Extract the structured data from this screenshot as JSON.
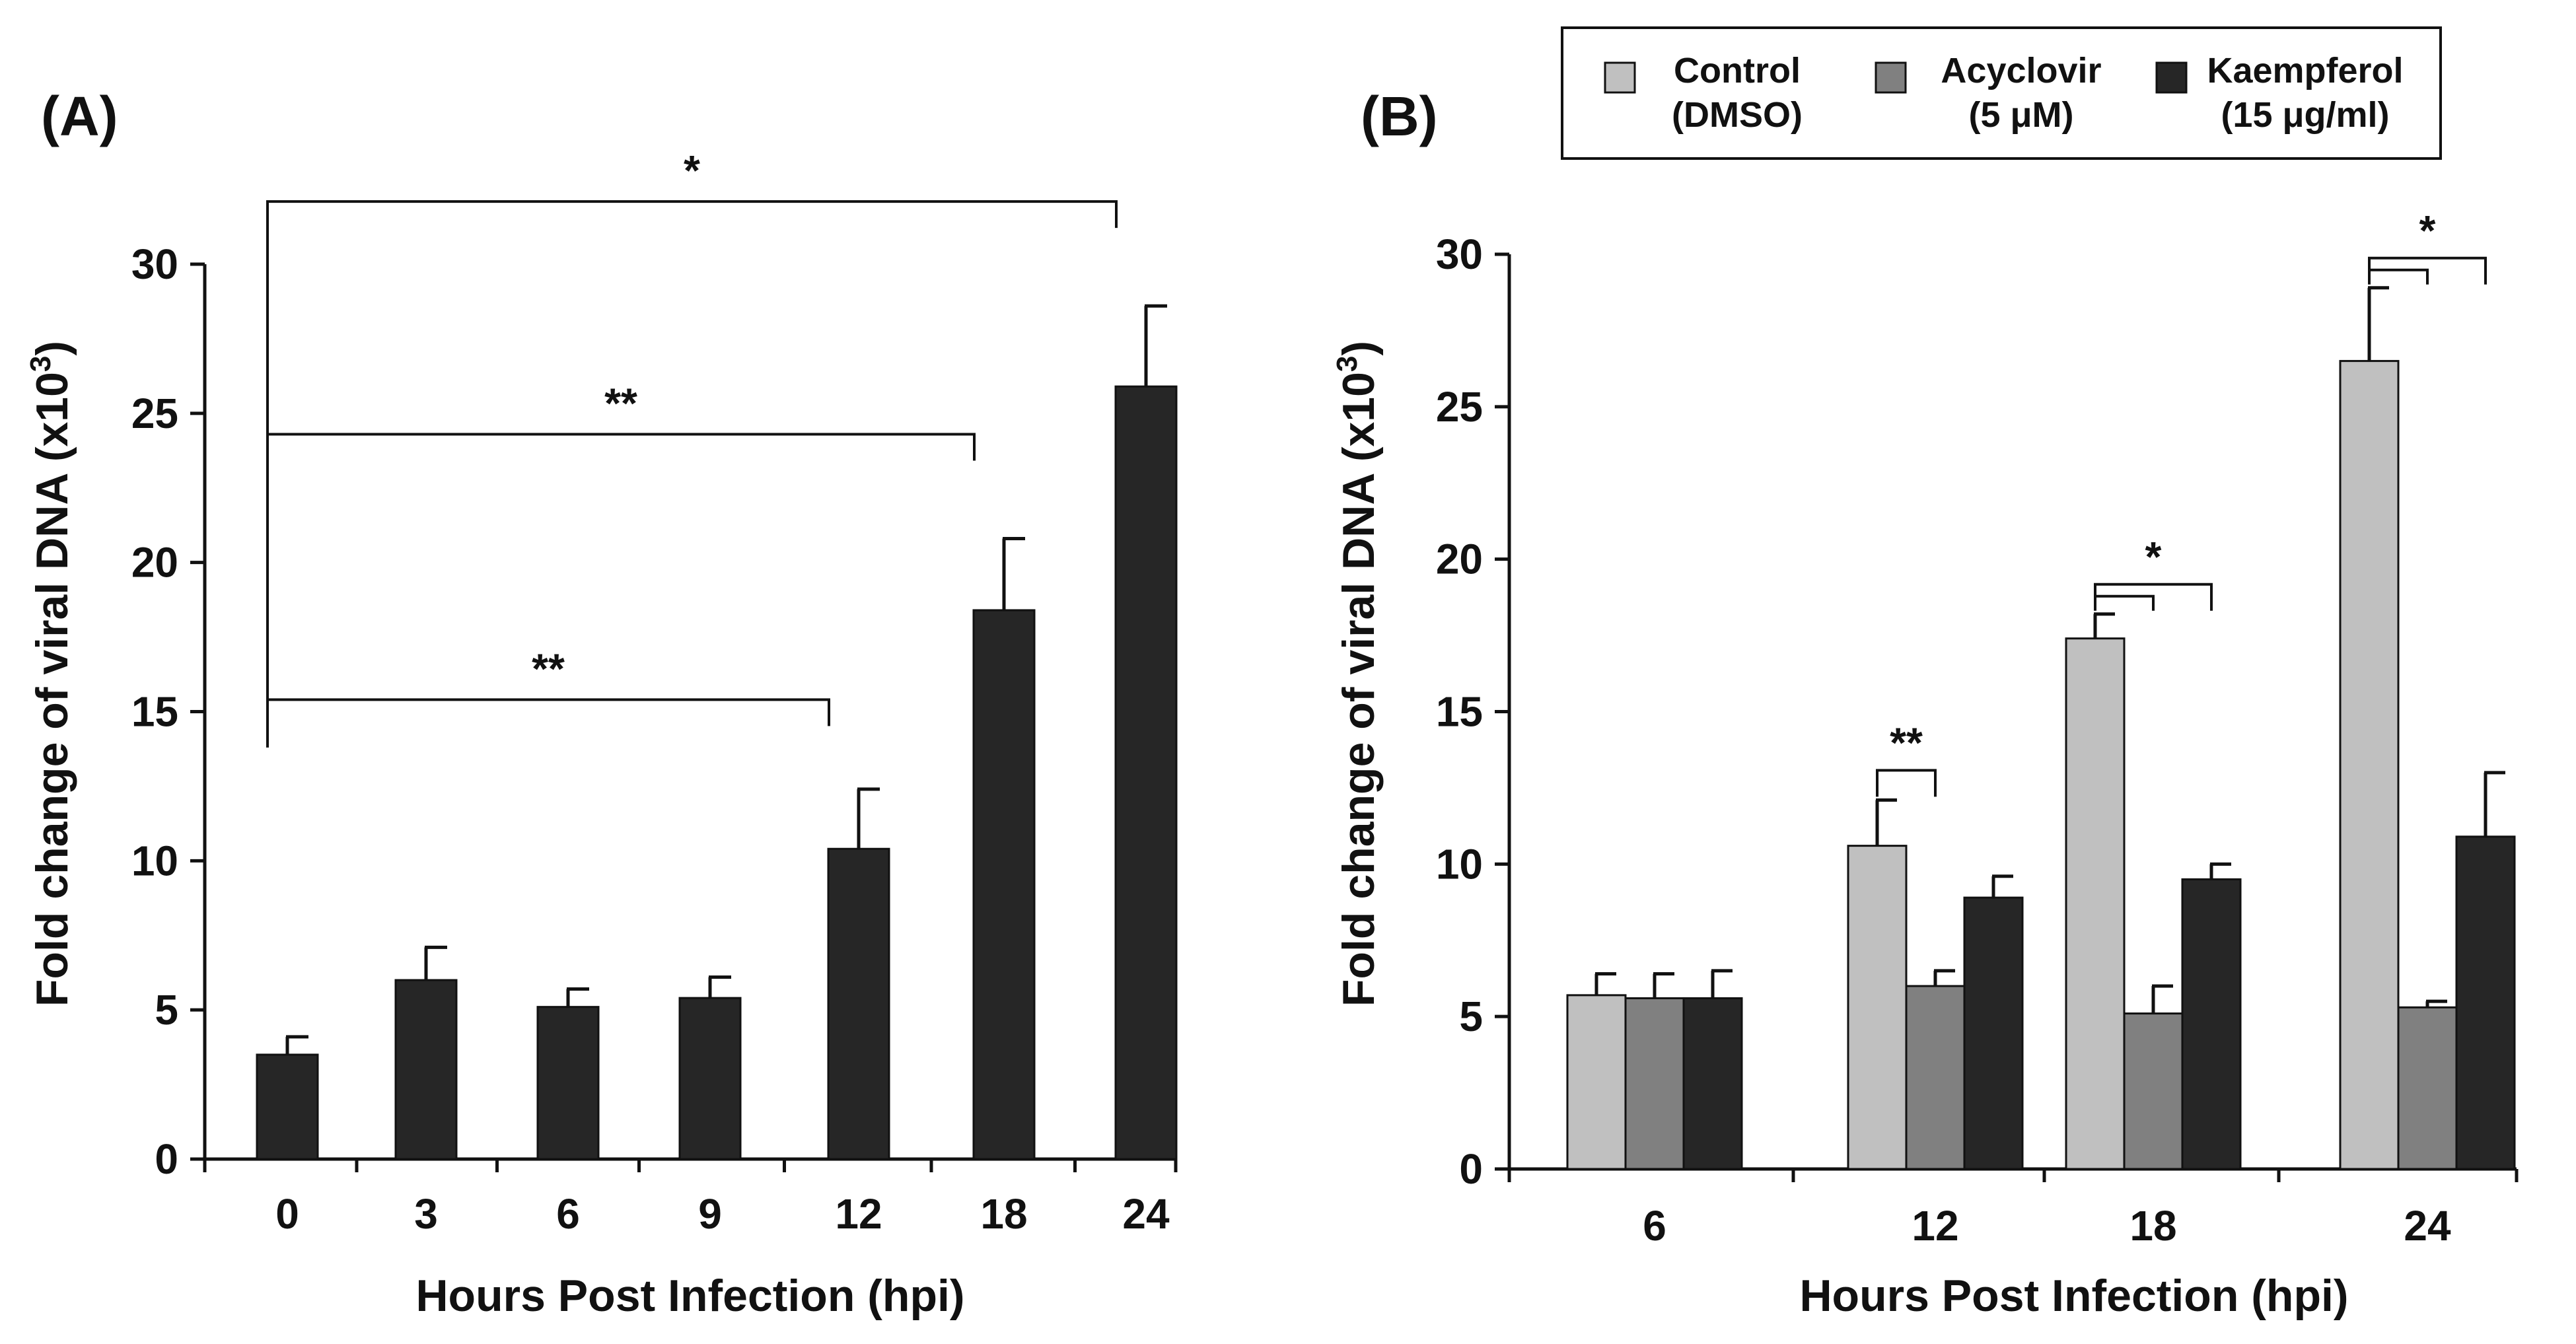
{
  "chart_data": [
    {
      "type": "bar",
      "panel_label": "(A)",
      "categories": [
        "0",
        "3",
        "6",
        "9",
        "12",
        "18",
        "24"
      ],
      "values": [
        3.5,
        6.0,
        5.1,
        5.4,
        10.4,
        18.4,
        25.9
      ],
      "errors": [
        0.6,
        1.1,
        0.6,
        0.7,
        2.0,
        2.4,
        2.7
      ],
      "xlabel": "Hours Post Infection (hpi)",
      "ylabel": "Fold change of viral DNA (x10",
      "ylabel_sup": "3",
      "ylabel_close": ")",
      "ylim": [
        0,
        30
      ],
      "yticks": [
        0,
        5,
        10,
        15,
        20,
        25,
        30
      ],
      "bar_color": "#262626",
      "grid": false,
      "significance": [
        {
          "from": "0",
          "to": "24",
          "label": "*"
        },
        {
          "from": "0",
          "to": "18",
          "label": "**"
        },
        {
          "from": "0",
          "to": "12",
          "label": "**"
        }
      ]
    },
    {
      "type": "bar",
      "panel_label": "(B)",
      "categories": [
        "6",
        "12",
        "18",
        "24"
      ],
      "series": [
        {
          "name_line1": "Control",
          "name_line2": "(DMSO)",
          "color": "#c0c0c0",
          "values": [
            5.7,
            10.6,
            17.4,
            26.5
          ],
          "errors": [
            0.7,
            1.5,
            0.8,
            2.4
          ]
        },
        {
          "name_line1": "Acyclovir",
          "name_line2": "(5 μM)",
          "color": "#808080",
          "values": [
            5.6,
            6.0,
            5.1,
            5.3
          ],
          "errors": [
            0.8,
            0.5,
            0.9,
            0.2
          ]
        },
        {
          "name_line1": "Kaempferol",
          "name_line2": "(15 μg/ml)",
          "color": "#262626",
          "values": [
            5.6,
            8.9,
            9.5,
            10.9
          ],
          "errors": [
            0.9,
            0.7,
            0.5,
            2.1
          ]
        }
      ],
      "xlabel": "Hours Post Infection (hpi)",
      "ylabel": "Fold change of viral DNA (x10",
      "ylabel_sup": "3",
      "ylabel_close": ")",
      "ylim": [
        0,
        30
      ],
      "yticks": [
        0,
        5,
        10,
        15,
        20,
        25,
        30
      ],
      "grid": false,
      "legend_position": "top",
      "significance": [
        {
          "category": "12",
          "label": "**",
          "style": "control-vs-acyclovir"
        },
        {
          "category": "18",
          "label": "*",
          "style": "control-vs-both"
        },
        {
          "category": "24",
          "label": "*",
          "style": "control-vs-both"
        }
      ]
    }
  ]
}
